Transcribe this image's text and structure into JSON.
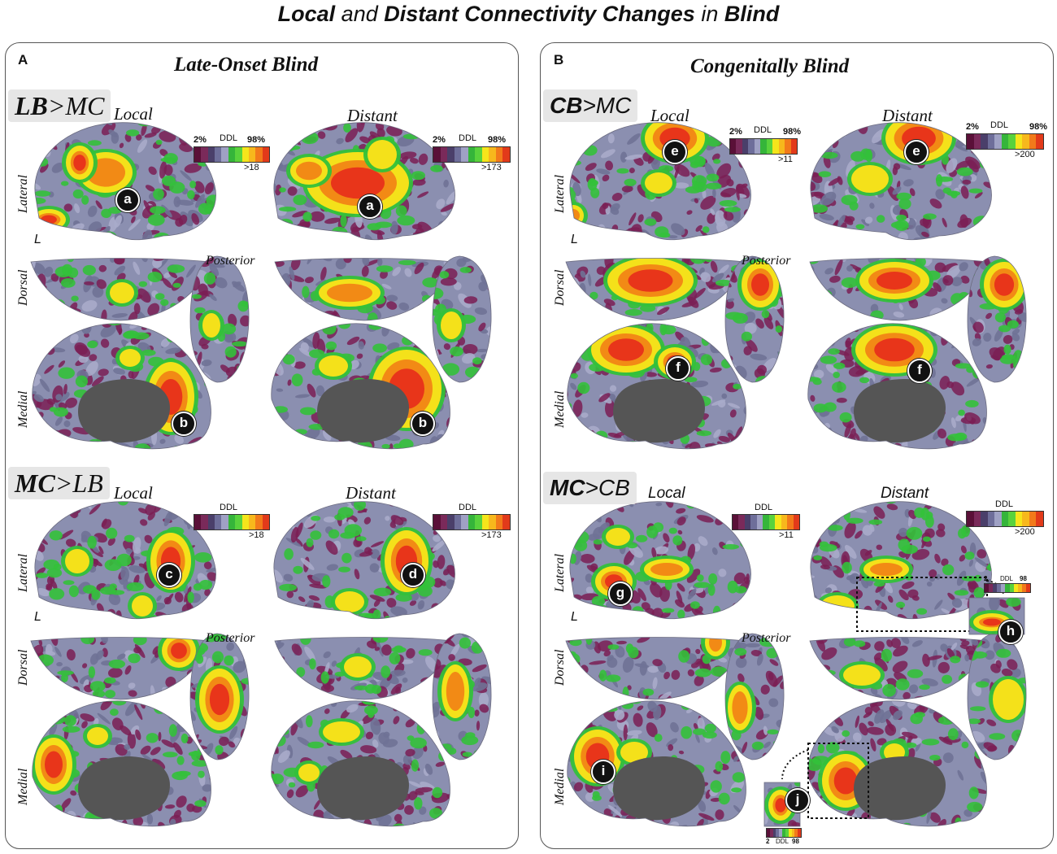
{
  "title": {
    "w1": "Local",
    "w2": " and ",
    "w3": "Distant",
    "w4": " Connectivity Changes",
    "w5": " in ",
    "w6": "Blind"
  },
  "panels": [
    {
      "letter": "A",
      "title": "Late-Onset Blind",
      "comparisons": [
        {
          "bold": "LB",
          "rest": ">MC",
          "local": "Local",
          "distant": "Distant"
        },
        {
          "bold": "MC",
          "rest": ">LB",
          "local": "Local",
          "distant": "Distant"
        }
      ]
    },
    {
      "letter": "B",
      "title": "Congenitally Blind",
      "comparisons": [
        {
          "bold": "CB",
          "rest": ">MC",
          "local": "Local",
          "distant": "Distant"
        },
        {
          "bold": "MC",
          "rest": ">CB",
          "local": "Local",
          "distant": "Distant"
        }
      ]
    }
  ],
  "view_labels": {
    "lateral": "Lateral",
    "dorsal": "Dorsal",
    "medial": "Medial",
    "posterior": "Posterior",
    "hemisphere": "L"
  },
  "colorbars": [
    {
      "low": "2%",
      "mid": "DDL",
      "high": "98%",
      "thr": ">18"
    },
    {
      "low": "2%",
      "mid": "DDL",
      "high": "98%",
      "thr": ">173"
    },
    {
      "low": "",
      "mid": "DDL",
      "high": "",
      "thr": ">18"
    },
    {
      "low": "",
      "mid": "DDL",
      "high": "",
      "thr": ">173"
    },
    {
      "low": "2%",
      "mid": "DDL",
      "high": "98%",
      "thr": ">11"
    },
    {
      "low": "2%",
      "mid": "DDL",
      "high": "98%",
      "thr": ">200"
    },
    {
      "low": "",
      "mid": "DDL",
      "high": "",
      "thr": ">11"
    },
    {
      "low": "",
      "mid": "DDL",
      "high": "",
      "thr": ">200"
    }
  ],
  "mini_colorbars": [
    {
      "low": "2",
      "mid": "DDL",
      "high": "98"
    },
    {
      "low": "2",
      "mid": "DDL",
      "high": "98"
    }
  ],
  "markers": [
    "a",
    "a",
    "b",
    "b",
    "c",
    "d",
    "e",
    "e",
    "f",
    "f",
    "g",
    "h",
    "i",
    "j"
  ],
  "colors": {
    "base": "#8b8fb0",
    "dark": "#7a1e55",
    "green": "#33c13a",
    "yellow": "#f4e11a",
    "orange": "#f28a15",
    "red": "#e8351a",
    "grey": "#c8c8c8",
    "cavity": "#555555"
  },
  "colorbar_scale": [
    "#5a1038",
    "#7a2a5a",
    "#4a3f6a",
    "#6e6e9a",
    "#9fa1c4",
    "#35b53a",
    "#59d23c",
    "#f5e51b",
    "#f7b81c",
    "#f27a1a",
    "#e23a1a"
  ]
}
